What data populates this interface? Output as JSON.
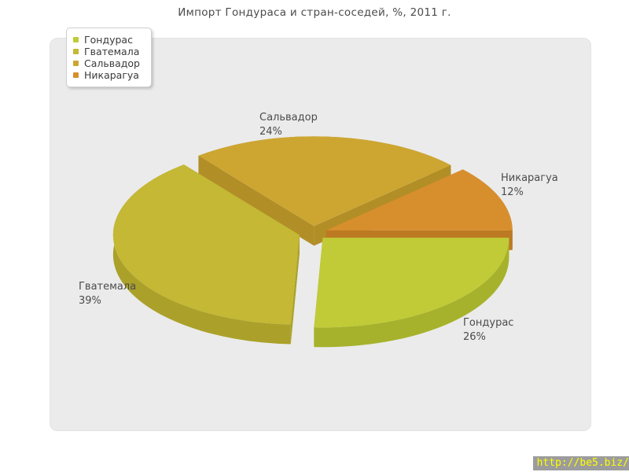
{
  "chart_data": {
    "type": "pie",
    "style": "3d-exploded",
    "title": "Импорт Гондураса и стран-соседей, %, 2011 г.",
    "legend_position": "top-left",
    "start_angle_deg": 0,
    "direction": "clockwise",
    "slices": [
      {
        "label": "Гондурас",
        "value": 26,
        "pct_text": "26%",
        "color_top": "#c0cb37",
        "color_side": "#a7b22c"
      },
      {
        "label": "Гватемала",
        "value": 39,
        "pct_text": "39%",
        "color_top": "#c4b834",
        "color_side": "#aba12a"
      },
      {
        "label": "Сальвадор",
        "value": 24,
        "pct_text": "24%",
        "color_top": "#cda632",
        "color_side": "#b28e27"
      },
      {
        "label": "Никарагуа",
        "value": 12,
        "pct_text": "12%",
        "color_top": "#d78f2e",
        "color_side": "#bc7a22"
      }
    ]
  },
  "watermark": {
    "text": "http://be5.biz/",
    "color": "#ffff00",
    "background": "#9c9c9c"
  }
}
